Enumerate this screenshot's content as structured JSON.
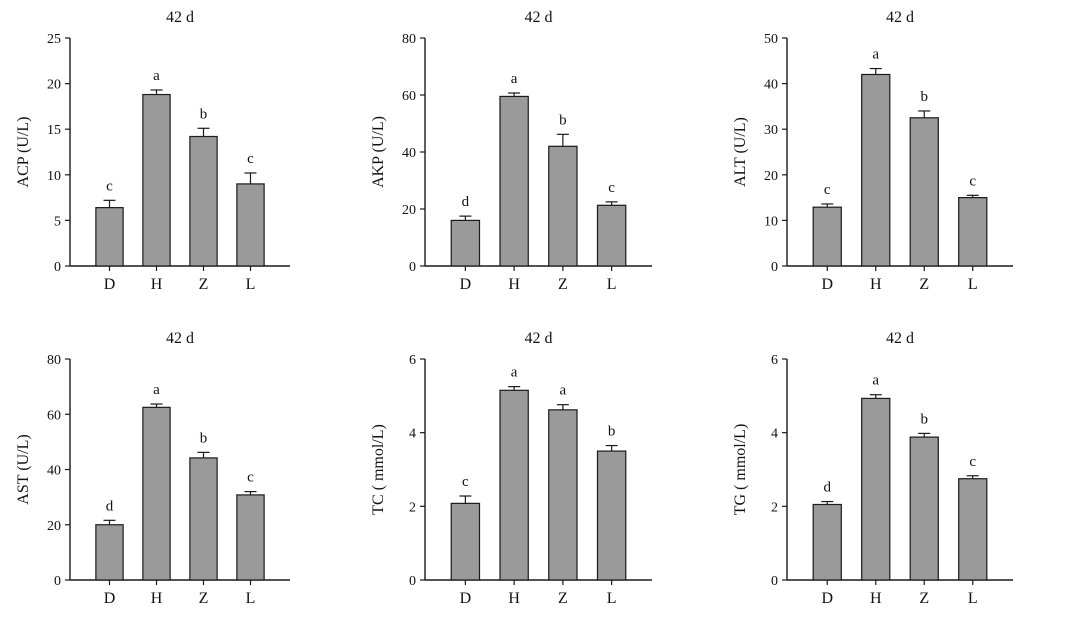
{
  "chart_data": [
    {
      "type": "bar",
      "title": "42 d",
      "ylabel": "ACP (U/L)",
      "categories": [
        "D",
        "H",
        "Z",
        "L"
      ],
      "values": [
        6.4,
        18.8,
        14.2,
        9.0
      ],
      "errors": [
        0.8,
        0.5,
        0.9,
        1.2
      ],
      "significance": [
        "c",
        "a",
        "b",
        "c"
      ],
      "ylim": [
        0,
        25
      ],
      "yticks": [
        0,
        5,
        10,
        15,
        20,
        25
      ]
    },
    {
      "type": "bar",
      "title": "42 d",
      "ylabel": "AKP (U/L)",
      "categories": [
        "D",
        "H",
        "Z",
        "L"
      ],
      "values": [
        16.0,
        59.5,
        42.0,
        21.3
      ],
      "errors": [
        1.5,
        1.2,
        4.2,
        1.2
      ],
      "significance": [
        "d",
        "a",
        "b",
        "c"
      ],
      "ylim": [
        0,
        80
      ],
      "yticks": [
        0,
        20,
        40,
        60,
        80
      ]
    },
    {
      "type": "bar",
      "title": "42 d",
      "ylabel": "ALT (U/L)",
      "categories": [
        "D",
        "H",
        "Z",
        "L"
      ],
      "values": [
        12.9,
        42.0,
        32.5,
        15.0
      ],
      "errors": [
        0.7,
        1.3,
        1.5,
        0.5
      ],
      "significance": [
        "c",
        "a",
        "b",
        "c"
      ],
      "ylim": [
        0,
        50
      ],
      "yticks": [
        0,
        10,
        20,
        30,
        40,
        50
      ]
    },
    {
      "type": "bar",
      "title": "42 d",
      "ylabel": "AST (U/L)",
      "categories": [
        "D",
        "H",
        "Z",
        "L"
      ],
      "values": [
        20.0,
        62.5,
        44.2,
        30.8
      ],
      "errors": [
        1.6,
        1.2,
        2.0,
        1.2
      ],
      "significance": [
        "d",
        "a",
        "b",
        "c"
      ],
      "ylim": [
        0,
        80
      ],
      "yticks": [
        0,
        20,
        40,
        60,
        80
      ]
    },
    {
      "type": "bar",
      "title": "42 d",
      "ylabel": "TC ( mmol/L)",
      "categories": [
        "D",
        "H",
        "Z",
        "L"
      ],
      "values": [
        2.08,
        5.15,
        4.62,
        3.5
      ],
      "errors": [
        0.2,
        0.1,
        0.14,
        0.15
      ],
      "significance": [
        "c",
        "a",
        "a",
        "b"
      ],
      "ylim": [
        0,
        6
      ],
      "yticks": [
        0,
        2,
        4,
        6
      ]
    },
    {
      "type": "bar",
      "title": "42 d",
      "ylabel": "TG ( mmol/L)",
      "categories": [
        "D",
        "H",
        "Z",
        "L"
      ],
      "values": [
        2.05,
        4.93,
        3.88,
        2.75
      ],
      "errors": [
        0.08,
        0.1,
        0.1,
        0.08
      ],
      "significance": [
        "d",
        "a",
        "b",
        "c"
      ],
      "ylim": [
        0,
        6
      ],
      "yticks": [
        0,
        2,
        4,
        6
      ]
    }
  ],
  "colors": {
    "bar_fill": "#9a9a9a",
    "bar_stroke": "#1a1a1a",
    "axis": "#1a1a1a"
  }
}
